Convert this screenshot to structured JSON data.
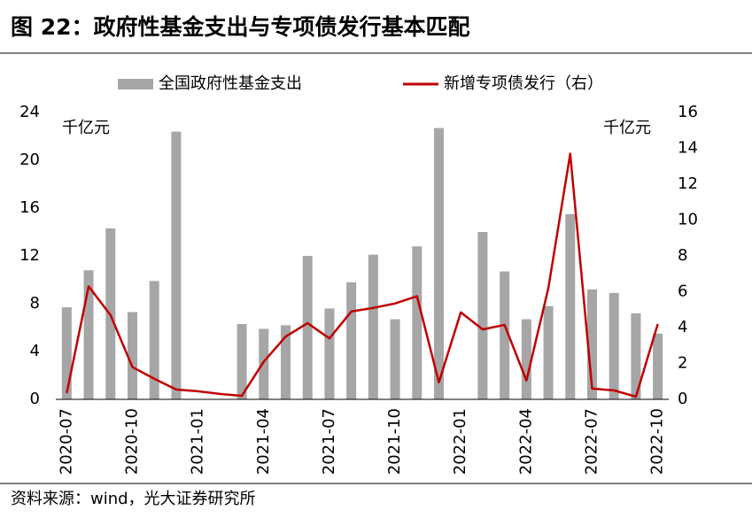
{
  "chart_data": {
    "type": "combo",
    "title": "图 22：政府性基金支出与专项债发行基本匹配",
    "y_unit": "千亿元",
    "y2_unit": "千亿元",
    "source": "资料来源：wind，光大证券研究所",
    "categories": [
      "2020-07",
      null,
      null,
      "2020-10",
      null,
      null,
      "2021-01",
      null,
      null,
      "2021-04",
      null,
      null,
      "2021-07",
      null,
      null,
      "2021-10",
      null,
      null,
      "2022-01",
      null,
      null,
      "2022-04",
      null,
      null,
      "2022-07",
      null,
      null,
      "2022-10"
    ],
    "series": [
      {
        "name": "全国政府性基金支出",
        "type": "bar",
        "color": "#a6a6a6",
        "values": [
          7.7,
          10.8,
          14.3,
          7.3,
          9.9,
          22.4,
          null,
          null,
          6.3,
          5.9,
          6.2,
          12.0,
          7.6,
          9.8,
          12.1,
          6.7,
          12.8,
          22.7,
          null,
          14.0,
          10.7,
          6.7,
          7.8,
          15.5,
          9.2,
          8.9,
          7.2,
          5.5
        ]
      },
      {
        "name": "新增专项债发行（右）",
        "type": "line",
        "axis": "y2",
        "color": "#c00000",
        "values": [
          0.35,
          6.3,
          4.7,
          1.8,
          1.15,
          0.55,
          0.45,
          0.3,
          0.2,
          2.1,
          3.5,
          4.25,
          3.4,
          4.9,
          5.1,
          5.35,
          5.75,
          0.95,
          4.85,
          3.9,
          4.15,
          1.05,
          6.2,
          13.7,
          0.6,
          0.5,
          0.15,
          4.2
        ]
      }
    ],
    "ylim": [
      0,
      24
    ],
    "yticks": [
      0,
      4,
      8,
      12,
      16,
      20,
      24
    ],
    "y2lim": [
      0,
      16
    ],
    "y2ticks": [
      0,
      2,
      4,
      6,
      8,
      10,
      12,
      14,
      16
    ],
    "legend": "top"
  }
}
